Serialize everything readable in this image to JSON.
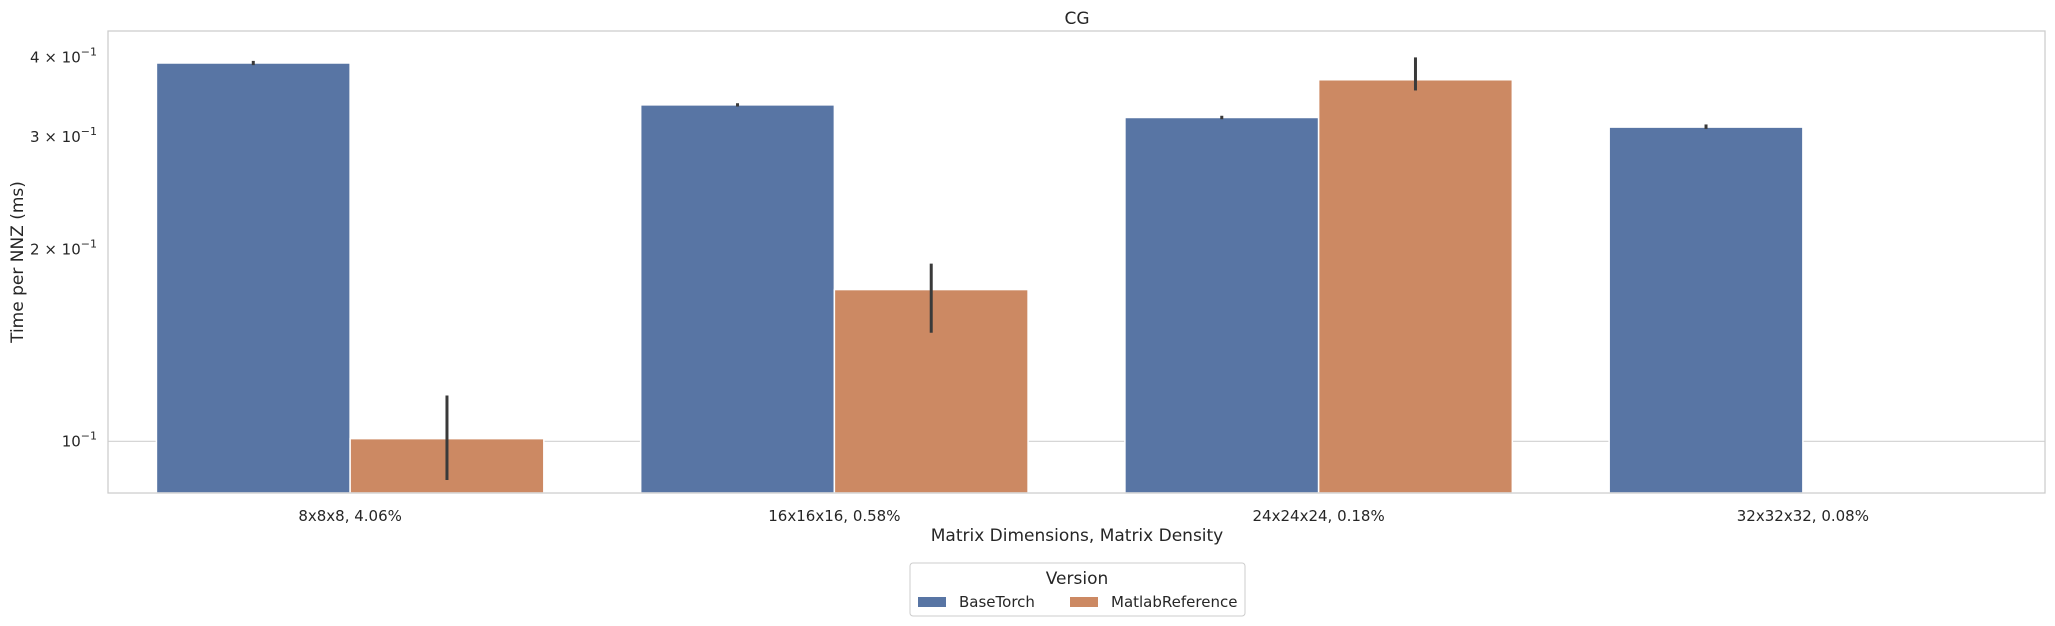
{
  "chart_data": {
    "type": "bar",
    "title": "CG",
    "xlabel": "Matrix Dimensions, Matrix Density",
    "ylabel": "Time per NNZ (ms)",
    "yscale": "log",
    "ylim": [
      0.083,
      0.44
    ],
    "grid": "horizontal",
    "categories": [
      "8x8x8, 4.06%",
      "16x16x16, 0.58%",
      "24x24x24, 0.18%",
      "32x32x32, 0.08%"
    ],
    "yticks": [
      {
        "value": 0.1,
        "base": "10",
        "exp": "−1"
      },
      {
        "value": 0.2,
        "base": "2 × 10",
        "exp": "−1"
      },
      {
        "value": 0.3,
        "base": "3 × 10",
        "exp": "−1"
      },
      {
        "value": 0.4,
        "base": "4 × 10",
        "exp": "−1"
      }
    ],
    "series": [
      {
        "name": "BaseTorch",
        "color": "#5875a4",
        "values": [
          0.392,
          0.337,
          0.322,
          0.311
        ],
        "err_low": [
          0.389,
          0.335,
          0.32,
          0.309
        ],
        "err_high": [
          0.395,
          0.339,
          0.324,
          0.314
        ]
      },
      {
        "name": "MatlabReference",
        "color": "#cc8963",
        "values": [
          0.101,
          0.173,
          0.369,
          null
        ],
        "err_low": [
          0.087,
          0.148,
          0.355,
          null
        ],
        "err_high": [
          0.118,
          0.19,
          0.4,
          null
        ]
      }
    ],
    "legend": {
      "title": "Version",
      "position": "bottom-center",
      "columns": 2
    }
  }
}
